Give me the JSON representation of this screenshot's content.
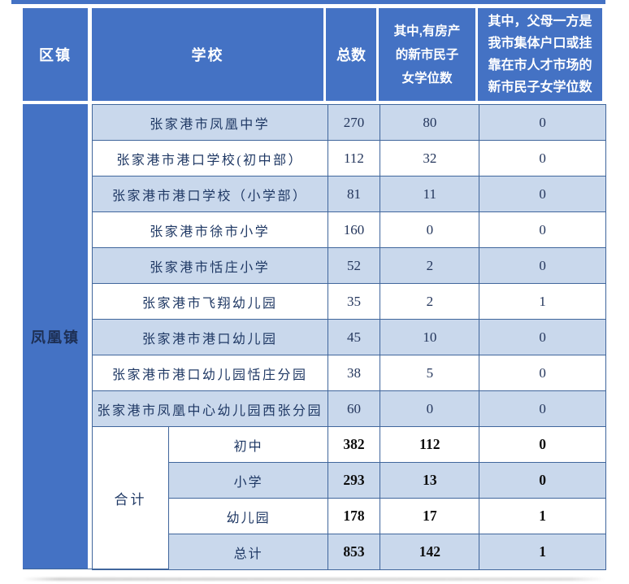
{
  "colors": {
    "header_blue": "#4472C4",
    "row_alt_blue": "#C9D8EC",
    "row_white": "#FFFFFF",
    "border_steel_blue": "#40669C",
    "header_text": "#FFFFFF",
    "body_text": "#1F3864",
    "summary_number_text": "#0D0D0D"
  },
  "table": {
    "header": {
      "district": "区镇",
      "school": "学校",
      "total": "总数",
      "with_property": "其中,有房产\n的新市民子\n女学位数",
      "collective": "其中，父母一方是\n我市集体户口或挂\n靠在市人才市场的\n新市民子女学位数"
    },
    "district": "凤凰镇",
    "rows": [
      {
        "school": "张家港市凤凰中学",
        "total": "270",
        "with_property": "80",
        "collective": "0"
      },
      {
        "school": "张家港市港口学校(初中部）",
        "total": "112",
        "with_property": "32",
        "collective": "0"
      },
      {
        "school": "张家港市港口学校（小学部）",
        "total": "81",
        "with_property": "11",
        "collective": "0"
      },
      {
        "school": "张家港市徐市小学",
        "total": "160",
        "with_property": "0",
        "collective": "0"
      },
      {
        "school": "张家港市恬庄小学",
        "total": "52",
        "with_property": "2",
        "collective": "0"
      },
      {
        "school": "张家港市飞翔幼儿园",
        "total": "35",
        "with_property": "2",
        "collective": "1"
      },
      {
        "school": "张家港市港口幼儿园",
        "total": "45",
        "with_property": "10",
        "collective": "0"
      },
      {
        "school": "张家港市港口幼儿园恬庄分园",
        "total": "38",
        "with_property": "5",
        "collective": "0"
      },
      {
        "school": "张家港市凤凰中心幼儿园西张分园",
        "total": "60",
        "with_property": "0",
        "collective": "0"
      }
    ],
    "summary": {
      "label": "合计",
      "rows": [
        {
          "category": "初中",
          "total": "382",
          "with_property": "112",
          "collective": "0"
        },
        {
          "category": "小学",
          "total": "293",
          "with_property": "13",
          "collective": "0"
        },
        {
          "category": "幼儿园",
          "total": "178",
          "with_property": "17",
          "collective": "1"
        },
        {
          "category": "总计",
          "total": "853",
          "with_property": "142",
          "collective": "1"
        }
      ]
    }
  }
}
